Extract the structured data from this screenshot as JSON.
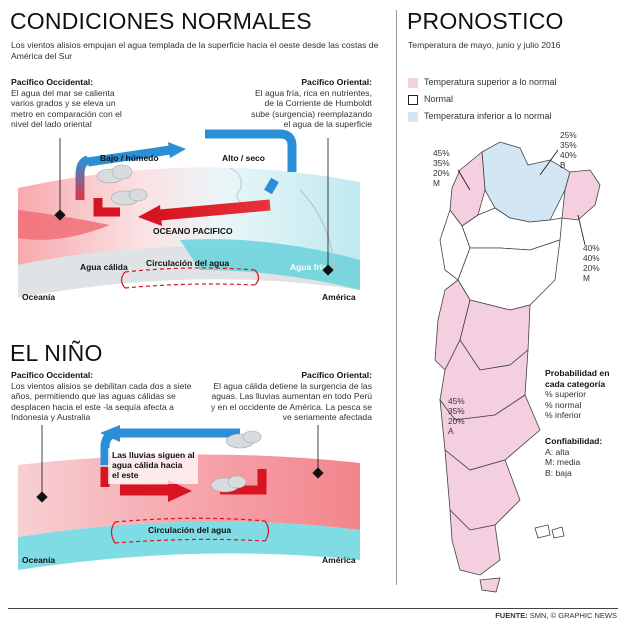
{
  "normal": {
    "title": "CONDICIONES NORMALES",
    "lead": "Los vientos alisios empujan el agua templada de la superficie hacia el oeste desde las costas de América del Sur",
    "west_title": "Pacífico Occidental:",
    "west_text": "El agua del mar se calienta varios grados y se eleva un metro en comparación con el nivel del lado oriental",
    "east_title": "Pacífico Oriental:",
    "east_text": "El agua fría, rica en nutrientes, de la Corriente de Humboldt sube (surgencia) reemplazando el agua de la superficie",
    "label_wet": "Bajo / húmedo",
    "label_dry": "Alto / seco",
    "label_ocean": "OCEANO PACIFICO",
    "label_circ": "Circulación del agua",
    "label_warm": "Agua cálida",
    "label_cold": "Agua fría",
    "label_oceania": "Oceanía",
    "label_america": "América"
  },
  "nino": {
    "title": "EL NIÑO",
    "west_title": "Pacífico Occidental:",
    "west_text": "Los vientos alisios se debilitan cada dos a siete años, permitiendo que las aguas cálidas se desplacen hacia el este -la sequía afecta a Indonesia y Australia",
    "east_title": "Pacífico Oriental:",
    "east_text": "El agua cálida detiene la surgencia de las aguas. Las lluvias aumentan en todo Perú y en el occidente de América. La pesca se ve seriamente afectada",
    "label_rain": "Las lluvias siguen al agua cálida hacia el este",
    "label_circ": "Circulación del agua",
    "label_oceania": "Oceanía",
    "label_america": "América"
  },
  "forecast": {
    "title": "PRONOSTICO",
    "subtitle": "Temperatura de mayo, junio y julio 2016",
    "legend": [
      {
        "label": "Temperatura superior a lo normal",
        "color": "#f4cfe0"
      },
      {
        "label": "Normal",
        "color": "#ffffff"
      },
      {
        "label": "Temperatura inferior a lo normal",
        "color": "#d3e6f5"
      }
    ],
    "map_labels": {
      "nw": "45%\n35%\n20%\nM",
      "ne": "25%\n35%\n40%\nB",
      "e": "40%\n40%\n20%\nM",
      "c": "45%\n35%\n20%\nA"
    },
    "prob_title": "Probabilidad en cada categoría",
    "prob_items": [
      "% superior",
      "% normal",
      "% inferior"
    ],
    "conf_title": "Confiabilidad:",
    "conf_items": [
      "A: alta",
      "M: media",
      "B: baja"
    ]
  },
  "footer": {
    "label": "FUENTE:",
    "text": "SMN, © GRAPHIC NEWS"
  },
  "colors": {
    "warm": "#e8343f",
    "cold": "#2fb7c8",
    "arrow_blue": "#2a8fd6",
    "pink": "#f4cfe0",
    "lightblue": "#d3e6f5"
  }
}
